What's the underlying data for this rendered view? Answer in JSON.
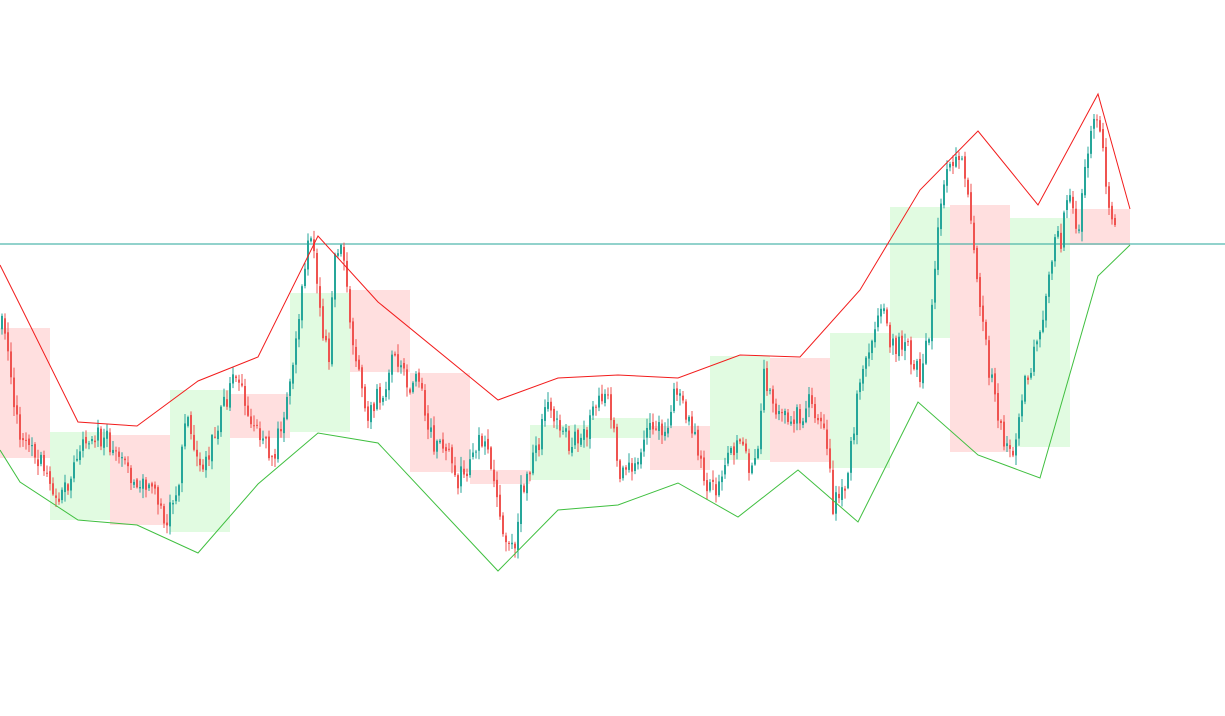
{
  "chart_data": {
    "type": "candlestick",
    "title": "",
    "xlabel": "",
    "ylabel": "",
    "axes_visible": false,
    "grid": false,
    "legend": "none",
    "ylim": [
      0,
      716
    ],
    "colors": {
      "up_candle": "#26a69a",
      "down_candle": "#ef5350",
      "upper_line": "#f21c1c",
      "lower_line": "#3fbf3f",
      "up_box": "#c9f7c9",
      "down_box": "#ffc4c4",
      "horizontal_level": "#26a69a"
    },
    "horizontal_level": 244,
    "upper_envelope": [
      [
        0,
        265
      ],
      [
        20,
        305
      ],
      [
        78,
        422
      ],
      [
        137,
        426
      ],
      [
        198,
        381
      ],
      [
        258,
        357
      ],
      [
        318,
        236
      ],
      [
        378,
        302
      ],
      [
        498,
        400
      ],
      [
        558,
        378
      ],
      [
        618,
        375
      ],
      [
        678,
        378
      ],
      [
        740,
        355
      ],
      [
        800,
        357
      ],
      [
        860,
        290
      ],
      [
        920,
        190
      ],
      [
        978,
        131
      ],
      [
        1038,
        205
      ],
      [
        1098,
        94
      ],
      [
        1130,
        209
      ]
    ],
    "lower_envelope": [
      [
        0,
        450
      ],
      [
        20,
        482
      ],
      [
        78,
        520
      ],
      [
        137,
        525
      ],
      [
        198,
        553
      ],
      [
        258,
        484
      ],
      [
        318,
        433
      ],
      [
        378,
        443
      ],
      [
        498,
        571
      ],
      [
        558,
        510
      ],
      [
        618,
        505
      ],
      [
        678,
        483
      ],
      [
        738,
        517
      ],
      [
        798,
        470
      ],
      [
        858,
        522
      ],
      [
        918,
        402
      ],
      [
        978,
        455
      ],
      [
        1040,
        478
      ],
      [
        1098,
        276
      ],
      [
        1130,
        245
      ]
    ],
    "boxes": [
      {
        "x0": 0,
        "x1": 50,
        "top": 328,
        "bottom": 458,
        "dir": "down"
      },
      {
        "x0": 50,
        "x1": 110,
        "top": 432,
        "bottom": 520,
        "dir": "up"
      },
      {
        "x0": 110,
        "x1": 170,
        "top": 435,
        "bottom": 525,
        "dir": "down"
      },
      {
        "x0": 170,
        "x1": 230,
        "top": 390,
        "bottom": 532,
        "dir": "up"
      },
      {
        "x0": 230,
        "x1": 290,
        "top": 394,
        "bottom": 438,
        "dir": "down"
      },
      {
        "x0": 290,
        "x1": 350,
        "top": 293,
        "bottom": 432,
        "dir": "up"
      },
      {
        "x0": 350,
        "x1": 410,
        "top": 290,
        "bottom": 372,
        "dir": "down"
      },
      {
        "x0": 410,
        "x1": 470,
        "top": 373,
        "bottom": 472,
        "dir": "down"
      },
      {
        "x0": 470,
        "x1": 530,
        "top": 470,
        "bottom": 484,
        "dir": "down"
      },
      {
        "x0": 530,
        "x1": 590,
        "top": 425,
        "bottom": 480,
        "dir": "up"
      },
      {
        "x0": 590,
        "x1": 650,
        "top": 418,
        "bottom": 438,
        "dir": "up"
      },
      {
        "x0": 650,
        "x1": 710,
        "top": 426,
        "bottom": 470,
        "dir": "down"
      },
      {
        "x0": 710,
        "x1": 770,
        "top": 356,
        "bottom": 460,
        "dir": "up"
      },
      {
        "x0": 770,
        "x1": 830,
        "top": 358,
        "bottom": 462,
        "dir": "down"
      },
      {
        "x0": 830,
        "x1": 890,
        "top": 333,
        "bottom": 468,
        "dir": "up"
      },
      {
        "x0": 890,
        "x1": 950,
        "top": 207,
        "bottom": 338,
        "dir": "up"
      },
      {
        "x0": 950,
        "x1": 1010,
        "top": 205,
        "bottom": 452,
        "dir": "down"
      },
      {
        "x0": 1010,
        "x1": 1070,
        "top": 218,
        "bottom": 447,
        "dir": "up"
      },
      {
        "x0": 1070,
        "x1": 1130,
        "top": 209,
        "bottom": 245,
        "dir": "down"
      }
    ],
    "candle_path": [
      [
        0,
        330
      ],
      [
        8,
        325
      ],
      [
        16,
        390
      ],
      [
        24,
        440
      ],
      [
        34,
        455
      ],
      [
        44,
        458
      ],
      [
        52,
        492
      ],
      [
        58,
        506
      ],
      [
        68,
        485
      ],
      [
        78,
        470
      ],
      [
        88,
        445
      ],
      [
        98,
        432
      ],
      [
        110,
        440
      ],
      [
        120,
        460
      ],
      [
        130,
        472
      ],
      [
        140,
        487
      ],
      [
        150,
        482
      ],
      [
        160,
        500
      ],
      [
        168,
        528
      ],
      [
        175,
        505
      ],
      [
        182,
        480
      ],
      [
        188,
        420
      ],
      [
        196,
        440
      ],
      [
        204,
        462
      ],
      [
        212,
        455
      ],
      [
        218,
        430
      ],
      [
        228,
        405
      ],
      [
        238,
        378
      ],
      [
        246,
        390
      ],
      [
        254,
        420
      ],
      [
        260,
        436
      ],
      [
        268,
        440
      ],
      [
        276,
        458
      ],
      [
        284,
        428
      ],
      [
        292,
        390
      ],
      [
        300,
        322
      ],
      [
        306,
        288
      ],
      [
        312,
        242
      ],
      [
        318,
        262
      ],
      [
        326,
        332
      ],
      [
        332,
        362
      ],
      [
        338,
        252
      ],
      [
        344,
        248
      ],
      [
        350,
        290
      ],
      [
        356,
        345
      ],
      [
        362,
        380
      ],
      [
        370,
        430
      ],
      [
        378,
        400
      ],
      [
        388,
        398
      ],
      [
        396,
        355
      ],
      [
        404,
        372
      ],
      [
        412,
        384
      ],
      [
        420,
        375
      ],
      [
        428,
        412
      ],
      [
        436,
        440
      ],
      [
        444,
        445
      ],
      [
        452,
        460
      ],
      [
        460,
        480
      ],
      [
        468,
        470
      ],
      [
        476,
        462
      ],
      [
        484,
        438
      ],
      [
        492,
        448
      ],
      [
        498,
        478
      ],
      [
        504,
        520
      ],
      [
        510,
        540
      ],
      [
        516,
        555
      ],
      [
        524,
        490
      ],
      [
        530,
        472
      ],
      [
        536,
        455
      ],
      [
        542,
        440
      ],
      [
        548,
        408
      ],
      [
        556,
        420
      ],
      [
        564,
        432
      ],
      [
        572,
        440
      ],
      [
        578,
        438
      ],
      [
        586,
        440
      ],
      [
        594,
        420
      ],
      [
        602,
        402
      ],
      [
        610,
        392
      ],
      [
        618,
        440
      ],
      [
        624,
        480
      ],
      [
        632,
        468
      ],
      [
        640,
        455
      ],
      [
        648,
        440
      ],
      [
        654,
        432
      ],
      [
        662,
        430
      ],
      [
        670,
        420
      ],
      [
        678,
        395
      ],
      [
        686,
        400
      ],
      [
        694,
        430
      ],
      [
        702,
        448
      ],
      [
        710,
        485
      ],
      [
        718,
        490
      ],
      [
        724,
        478
      ],
      [
        732,
        455
      ],
      [
        740,
        440
      ],
      [
        746,
        445
      ],
      [
        752,
        468
      ],
      [
        760,
        448
      ],
      [
        768,
        370
      ],
      [
        774,
        405
      ],
      [
        782,
        413
      ],
      [
        790,
        420
      ],
      [
        798,
        420
      ],
      [
        806,
        412
      ],
      [
        814,
        398
      ],
      [
        822,
        420
      ],
      [
        830,
        440
      ],
      [
        836,
        505
      ],
      [
        842,
        500
      ],
      [
        848,
        488
      ],
      [
        856,
        432
      ],
      [
        862,
        380
      ],
      [
        870,
        365
      ],
      [
        878,
        320
      ],
      [
        886,
        305
      ],
      [
        892,
        340
      ],
      [
        900,
        345
      ],
      [
        908,
        350
      ],
      [
        916,
        358
      ],
      [
        924,
        375
      ],
      [
        932,
        330
      ],
      [
        940,
        240
      ],
      [
        946,
        190
      ],
      [
        952,
        165
      ],
      [
        958,
        152
      ],
      [
        964,
        165
      ],
      [
        970,
        190
      ],
      [
        978,
        260
      ],
      [
        986,
        325
      ],
      [
        992,
        370
      ],
      [
        1000,
        410
      ],
      [
        1008,
        440
      ],
      [
        1014,
        462
      ],
      [
        1020,
        428
      ],
      [
        1028,
        385
      ],
      [
        1036,
        363
      ],
      [
        1044,
        320
      ],
      [
        1052,
        285
      ],
      [
        1058,
        235
      ],
      [
        1064,
        245
      ],
      [
        1070,
        192
      ],
      [
        1076,
        210
      ],
      [
        1082,
        235
      ],
      [
        1088,
        170
      ],
      [
        1096,
        115
      ],
      [
        1104,
        135
      ],
      [
        1110,
        195
      ],
      [
        1116,
        225
      ]
    ]
  }
}
